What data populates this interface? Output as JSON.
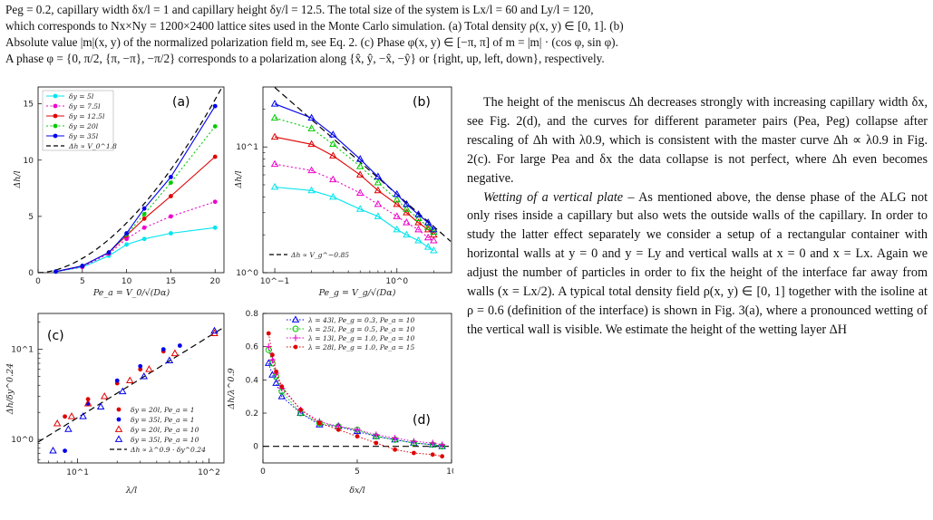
{
  "caption": {
    "line1": "Peg = 0.2, capillary width δx/l = 1 and capillary height δy/l = 12.5. The total size of the system is Lx/l = 60 and Ly/l = 120,",
    "line2": "which corresponds to Nx×Ny = 1200×2400 lattice sites used in the Monte Carlo simulation. (a) Total density ρ(x, y) ∈ [0, 1]. (b)",
    "line3": "Absolute value |m|(x, y) of the normalized polarization field m, see Eq. 2. (c) Phase φ(x, y) ∈ [−π, π] of m = |m| · (cos φ, sin φ).",
    "line4": "A phase φ = {0, π/2, {π, −π}, −π/2} corresponds to a polarization along {x̂, ŷ, −x̂, −ŷ} or {right, up, left, down}, respectively."
  },
  "panels": {
    "a": {
      "label": "(a)",
      "xlabel": "Pe_a = V_0/√(Dα)",
      "ylabel": "Δh/l",
      "xticks": [
        "0",
        "5",
        "10",
        "15",
        "20"
      ],
      "yticks": [
        "0",
        "5",
        "10",
        "15"
      ],
      "legend": [
        "δy = 5l",
        "δy = 7.5l",
        "δy = 12.5l",
        "δy = 20l",
        "δy = 35l",
        "Δh ∝ V_0^1.8"
      ]
    },
    "b": {
      "label": "(b)",
      "xlabel": "Pe_g = V_g/√(Dα)",
      "ylabel": "Δh/l",
      "xticks": [
        "10^−1",
        "10^0"
      ],
      "yticks": [
        "10^0",
        "10^1"
      ],
      "legend": [
        "Δh ∝ V_g^−0.85"
      ]
    },
    "c": {
      "label": "(c)",
      "xlabel": "λ/l",
      "ylabel": "Δh/δy^0.24",
      "xticks": [
        "10^1",
        "10^2"
      ],
      "yticks": [
        "10^0",
        "10^1"
      ],
      "legend": [
        "δy = 20l, Pe_a = 1",
        "δy = 35l, Pe_a = 1",
        "δy = 20l, Pe_a = 10",
        "δy = 35l, Pe_a = 10",
        "Δh ∝ λ^0.9 · δy^0.24"
      ]
    },
    "d": {
      "label": "(d)",
      "xlabel": "δx/l",
      "ylabel": "Δh/λ^0.9",
      "xticks": [
        "0",
        "5",
        "10"
      ],
      "yticks": [
        "0",
        "0.2",
        "0.4",
        "0.6",
        "0.8"
      ],
      "legend": [
        "λ = 43l, Pe_g = 0.3, Pe_a = 10",
        "λ = 25l, Pe_g = 0.5, Pe_a = 10",
        "λ = 13l, Pe_g = 1.0, Pe_a = 10",
        "λ = 28l, Pe_g = 1.0, Pe_a = 15"
      ]
    }
  },
  "chart_data": [
    {
      "type": "line",
      "title": "(a)",
      "xlabel": "Pe_a = V_0/√(Dα)",
      "ylabel": "Δh/l",
      "xlim": [
        0,
        21
      ],
      "ylim": [
        0,
        16.5
      ],
      "x": [
        2,
        5,
        8,
        10,
        12,
        15,
        20
      ],
      "series": [
        {
          "name": "δy = 5l",
          "color": "#00e5ee",
          "values": [
            0.1,
            0.5,
            1.5,
            2.5,
            3.0,
            3.5,
            4.0
          ]
        },
        {
          "name": "δy = 7.5l",
          "color": "#ee00cc",
          "values": [
            0.1,
            0.5,
            1.7,
            3.0,
            4.0,
            5.0,
            6.3
          ]
        },
        {
          "name": "δy = 12.5l",
          "color": "#e00000",
          "values": [
            0.1,
            0.6,
            1.8,
            3.3,
            4.8,
            6.8,
            10.3
          ]
        },
        {
          "name": "δy = 20l",
          "color": "#00cc00",
          "values": [
            0.1,
            0.6,
            1.8,
            3.4,
            5.2,
            8.0,
            13.0
          ]
        },
        {
          "name": "δy = 35l",
          "color": "#0000ee",
          "values": [
            0.1,
            0.6,
            1.8,
            3.5,
            5.7,
            8.5,
            14.8
          ]
        }
      ],
      "fit": {
        "name": "Δh ∝ V_0^1.8",
        "prefactor": 0.07,
        "exponent": 1.8
      }
    },
    {
      "type": "line",
      "title": "(b)",
      "xlabel": "Pe_g = V_g/√(Dα)",
      "ylabel": "Δh/l",
      "xscale": "log",
      "yscale": "log",
      "xlim": [
        0.08,
        2.8
      ],
      "ylim": [
        1,
        30
      ],
      "x": [
        0.1,
        0.2,
        0.3,
        0.5,
        0.7,
        1.0,
        1.2,
        1.5,
        1.8,
        2.0
      ],
      "series": [
        {
          "name": "",
          "color": "#00e5ee",
          "marker": "triangle",
          "values": [
            4.8,
            4.5,
            4.0,
            3.2,
            2.8,
            2.2,
            2.0,
            1.8,
            1.6,
            1.5
          ]
        },
        {
          "name": "",
          "color": "#ee00cc",
          "marker": "triangle",
          "values": [
            7.3,
            6.5,
            5.5,
            4.3,
            3.5,
            2.8,
            2.5,
            2.2,
            1.9,
            1.8
          ]
        },
        {
          "name": "",
          "color": "#e00000",
          "marker": "triangle",
          "values": [
            12.0,
            10.5,
            8.5,
            6.0,
            4.5,
            3.5,
            3.0,
            2.5,
            2.2,
            2.0
          ]
        },
        {
          "name": "",
          "color": "#00cc00",
          "marker": "triangle",
          "values": [
            17.0,
            14.0,
            10.5,
            7.0,
            5.2,
            3.8,
            3.2,
            2.7,
            2.3,
            2.1
          ]
        },
        {
          "name": "",
          "color": "#0000ee",
          "marker": "triangle",
          "values": [
            22.0,
            17.0,
            12.5,
            8.0,
            5.8,
            4.2,
            3.5,
            2.9,
            2.5,
            2.2
          ]
        }
      ],
      "fit": {
        "name": "Δh ∝ V_g^−0.85",
        "prefactor": 4.2,
        "exponent": -0.85
      }
    },
    {
      "type": "scatter",
      "title": "(c)",
      "xlabel": "λ/l",
      "ylabel": "Δh/δy^0.24",
      "xscale": "log",
      "yscale": "log",
      "xlim": [
        5,
        130
      ],
      "ylim": [
        0.55,
        25
      ],
      "series": [
        {
          "name": "δy = 20l, Pe_a = 1",
          "color": "#e00000",
          "marker": "dot",
          "x": [
            8,
            12,
            20,
            30,
            45
          ],
          "y": [
            1.8,
            2.8,
            4.2,
            6.0,
            9.5
          ]
        },
        {
          "name": "δy = 35l, Pe_a = 1",
          "color": "#0000ee",
          "marker": "dot",
          "x": [
            8,
            12,
            20,
            30,
            45,
            60
          ],
          "y": [
            0.75,
            2.5,
            4.5,
            6.5,
            10.0,
            11.0
          ]
        },
        {
          "name": "δy = 20l, Pe_a = 10",
          "color": "#e00000",
          "marker": "triangle",
          "x": [
            7,
            9,
            12,
            16,
            25,
            35,
            55,
            110
          ],
          "y": [
            1.5,
            1.8,
            2.5,
            3.0,
            4.5,
            6.0,
            9.0,
            15.0
          ]
        },
        {
          "name": "δy = 35l, Pe_a = 10",
          "color": "#0000ee",
          "marker": "triangle",
          "x": [
            6.5,
            8.5,
            11,
            15,
            22,
            32,
            50,
            110
          ],
          "y": [
            0.75,
            1.3,
            1.8,
            2.3,
            3.4,
            5.0,
            7.5,
            16.0
          ]
        }
      ],
      "fit": {
        "name": "Δh ∝ λ^0.9 · δy^0.24",
        "prefactor": 0.22,
        "exponent": 0.9
      }
    },
    {
      "type": "line",
      "title": "(d)",
      "xlabel": "δx/l",
      "ylabel": "Δh/λ^0.9",
      "xlim": [
        0,
        10
      ],
      "ylim": [
        -0.1,
        0.8
      ],
      "series": [
        {
          "name": "λ = 43l, Pe_g = 0.3, Pe_a = 10",
          "color": "#0000ee",
          "marker": "triangle",
          "x": [
            0.3,
            0.5,
            0.7,
            1,
            2,
            3,
            4,
            5,
            6,
            7,
            8,
            9,
            9.5
          ],
          "y": [
            0.5,
            0.43,
            0.38,
            0.3,
            0.2,
            0.13,
            0.12,
            0.09,
            0.06,
            0.04,
            0.02,
            0.01,
            0.0
          ]
        },
        {
          "name": "λ = 25l, Pe_g = 0.5, Pe_a = 10",
          "color": "#00cc00",
          "marker": "circle-open",
          "x": [
            0.3,
            0.5,
            0.7,
            1,
            2,
            3,
            4,
            5,
            6,
            7,
            8,
            9,
            9.5
          ],
          "y": [
            0.58,
            0.5,
            0.42,
            0.33,
            0.2,
            0.14,
            0.12,
            0.1,
            0.06,
            0.04,
            0.02,
            0.01,
            0.0
          ]
        },
        {
          "name": "λ = 13l, Pe_g = 1.0, Pe_a = 10",
          "color": "#ee00cc",
          "marker": "plus",
          "x": [
            0.3,
            0.5,
            0.7,
            1,
            2,
            3,
            4,
            5,
            6,
            7,
            8,
            9,
            9.5
          ],
          "y": [
            0.6,
            0.52,
            0.44,
            0.35,
            0.22,
            0.15,
            0.12,
            0.1,
            0.07,
            0.05,
            0.03,
            0.02,
            0.01
          ]
        },
        {
          "name": "λ = 28l, Pe_g = 1.0, Pe_a = 15",
          "color": "#e00000",
          "marker": "dot",
          "x": [
            0.3,
            0.5,
            0.7,
            1,
            2,
            3,
            4,
            5,
            6,
            7,
            8,
            9,
            9.5
          ],
          "y": [
            0.68,
            0.55,
            0.45,
            0.36,
            0.22,
            0.14,
            0.1,
            0.06,
            0.02,
            -0.02,
            -0.04,
            -0.05,
            -0.06
          ]
        }
      ]
    }
  ],
  "body": {
    "p1": "The height of the meniscus Δh decreases strongly with increasing capillary width δx, see Fig. 2(d), and the curves for different parameter pairs (Pea, Peg) collapse after rescaling of Δh with λ0.9, which is consistent with the master curve Δh ∝ λ0.9 in Fig. 2(c). For large Pea and δx the data collapse is not perfect, where Δh even becomes negative.",
    "p2_title": "Wetting of a vertical plate",
    "p2": " – As mentioned above, the dense phase of the ALG not only rises inside a capillary but also wets the outside walls of the capillary. In order to study the latter effect separately we consider a setup of a rectangular container with horizontal walls at y = 0 and y = Ly and vertical walls at x = 0 and x = Lx. Again we adjust the number of particles in order to fix the height of the interface far away from walls (x = Lx/2). A typical total density field ρ(x, y) ∈ [0, 1] together with the isoline at ρ = 0.6 (definition of the interface) is shown in Fig. 3(a), where a pronounced wetting of the vertical wall is visible. We estimate the height of the wetting layer ΔH"
  }
}
